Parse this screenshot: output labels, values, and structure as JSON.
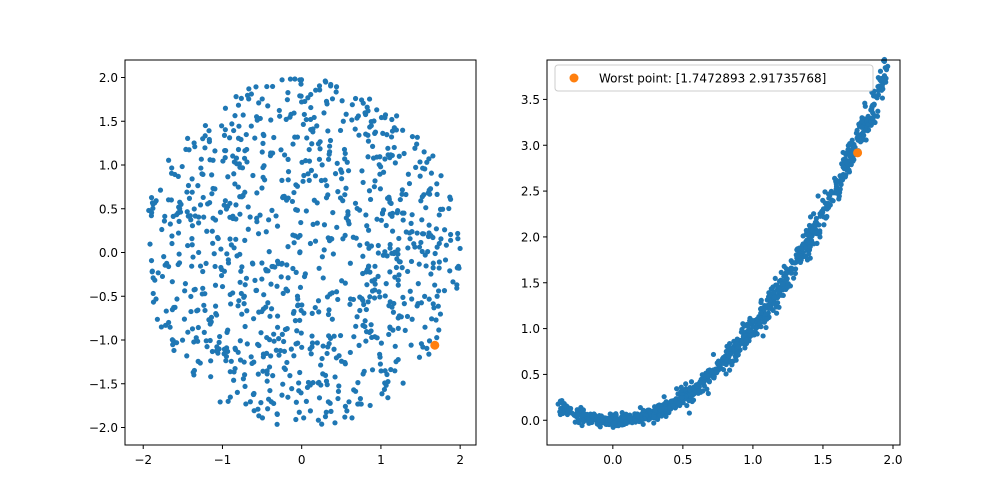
{
  "colors": {
    "series": "#1f77b4",
    "highlight": "#ff7f0e",
    "axes": "#000000",
    "background": "#ffffff"
  },
  "chart_data": [
    {
      "type": "scatter",
      "title": "",
      "xlabel": "",
      "ylabel": "",
      "xlim": [
        -2.23,
        2.2
      ],
      "ylim": [
        -2.2,
        2.2
      ],
      "grid": false,
      "xticks": [
        "−2",
        "−1",
        "0",
        "1",
        "2"
      ],
      "yticks": [
        "−2.0",
        "−1.5",
        "−1.0",
        "−0.5",
        "0.0",
        "0.5",
        "1.0",
        "1.5",
        "2.0"
      ],
      "distribution": {
        "shape": "disk",
        "center": [
          0,
          0
        ],
        "radius": 2.0,
        "count": 1000
      },
      "series": [
        {
          "values": "uniform samples within disk of radius 2 (see distribution)"
        }
      ],
      "highlight": {
        "x": 1.68,
        "y": -1.06
      }
    },
    {
      "type": "scatter",
      "title": "",
      "xlabel": "",
      "ylabel": "",
      "xlim": [
        -0.47,
        2.05
      ],
      "ylim": [
        -0.27,
        3.93
      ],
      "grid": false,
      "xticks": [
        "0.0",
        "0.5",
        "1.0",
        "1.5",
        "2.0"
      ],
      "yticks": [
        "0.0",
        "0.5",
        "1.0",
        "1.5",
        "2.0",
        "2.5",
        "3.0",
        "3.5"
      ],
      "legend": {
        "placement": "top-left",
        "entries": [
          "Worst point: [1.7472893  2.91735768]"
        ]
      },
      "distribution": {
        "shape": "parabolic band y ≈ x^2",
        "x_range": [
          -0.38,
          1.96
        ],
        "count": 1000
      },
      "series": [
        {
          "values": "points along y ≈ x^2 band (see distribution)"
        }
      ],
      "highlight": {
        "name": "Worst point: [1.7472893  2.91735768]",
        "x": 1.7472893,
        "y": 2.91735768
      }
    }
  ]
}
